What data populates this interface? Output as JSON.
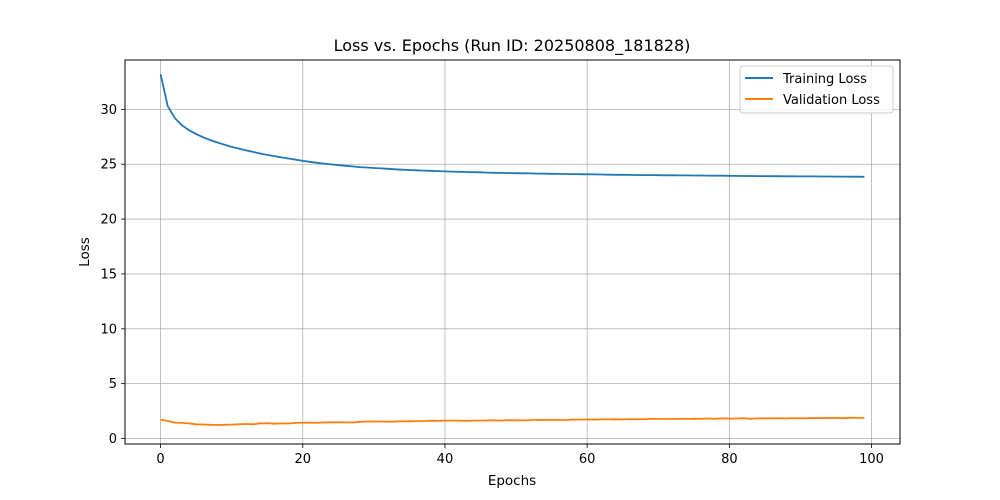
{
  "chart_data": {
    "type": "line",
    "title": "Loss vs. Epochs (Run ID: 20250808_181828)",
    "xlabel": "Epochs",
    "ylabel": "Loss",
    "xlim": [
      -5,
      104
    ],
    "ylim": [
      -0.5,
      34.5
    ],
    "xticks": [
      0,
      20,
      40,
      60,
      80,
      100
    ],
    "yticks": [
      0,
      5,
      10,
      15,
      20,
      25,
      30
    ],
    "grid": true,
    "legend_position": "top-right",
    "x": [
      0,
      1,
      2,
      3,
      4,
      5,
      6,
      7,
      8,
      9,
      10,
      11,
      12,
      13,
      14,
      15,
      16,
      17,
      18,
      19,
      20,
      21,
      22,
      23,
      24,
      25,
      26,
      27,
      28,
      29,
      30,
      31,
      32,
      33,
      34,
      35,
      36,
      37,
      38,
      39,
      40,
      41,
      42,
      43,
      44,
      45,
      46,
      47,
      48,
      49,
      50,
      51,
      52,
      53,
      54,
      55,
      56,
      57,
      58,
      59,
      60,
      61,
      62,
      63,
      64,
      65,
      66,
      67,
      68,
      69,
      70,
      71,
      72,
      73,
      74,
      75,
      76,
      77,
      78,
      79,
      80,
      81,
      82,
      83,
      84,
      85,
      86,
      87,
      88,
      89,
      90,
      91,
      92,
      93,
      94,
      95,
      96,
      97,
      98,
      99
    ],
    "series": [
      {
        "name": "Training Loss",
        "color": "#1f77b4",
        "values": [
          33.2,
          30.3,
          29.2,
          28.55,
          28.1,
          27.75,
          27.45,
          27.2,
          26.98,
          26.78,
          26.58,
          26.42,
          26.26,
          26.12,
          25.98,
          25.85,
          25.74,
          25.62,
          25.52,
          25.42,
          25.3,
          25.22,
          25.13,
          25.05,
          24.98,
          24.92,
          24.86,
          24.8,
          24.74,
          24.7,
          24.66,
          24.62,
          24.58,
          24.54,
          24.5,
          24.47,
          24.45,
          24.42,
          24.4,
          24.37,
          24.35,
          24.33,
          24.31,
          24.29,
          24.27,
          24.26,
          24.24,
          24.22,
          24.21,
          24.19,
          24.18,
          24.17,
          24.16,
          24.15,
          24.14,
          24.13,
          24.12,
          24.11,
          24.1,
          24.09,
          24.08,
          24.07,
          24.06,
          24.05,
          24.04,
          24.04,
          24.03,
          24.02,
          24.01,
          24.01,
          24.0,
          23.99,
          23.99,
          23.98,
          23.98,
          23.97,
          23.97,
          23.96,
          23.95,
          23.95,
          23.94,
          23.94,
          23.93,
          23.93,
          23.92,
          23.92,
          23.91,
          23.91,
          23.9,
          23.9,
          23.89,
          23.89,
          23.89,
          23.88,
          23.88,
          23.87,
          23.87,
          23.86,
          23.86,
          23.85
        ]
      },
      {
        "name": "Validation Loss",
        "color": "#ff7f0e",
        "values": [
          1.72,
          1.6,
          1.45,
          1.42,
          1.38,
          1.3,
          1.28,
          1.25,
          1.23,
          1.25,
          1.27,
          1.3,
          1.32,
          1.3,
          1.38,
          1.4,
          1.35,
          1.38,
          1.37,
          1.42,
          1.44,
          1.45,
          1.43,
          1.46,
          1.48,
          1.48,
          1.47,
          1.46,
          1.52,
          1.55,
          1.56,
          1.55,
          1.53,
          1.55,
          1.57,
          1.57,
          1.59,
          1.6,
          1.62,
          1.61,
          1.63,
          1.63,
          1.62,
          1.61,
          1.64,
          1.63,
          1.65,
          1.66,
          1.64,
          1.67,
          1.66,
          1.65,
          1.68,
          1.7,
          1.69,
          1.71,
          1.7,
          1.68,
          1.73,
          1.72,
          1.74,
          1.72,
          1.75,
          1.74,
          1.76,
          1.73,
          1.77,
          1.75,
          1.76,
          1.8,
          1.79,
          1.78,
          1.78,
          1.8,
          1.79,
          1.81,
          1.8,
          1.82,
          1.8,
          1.83,
          1.81,
          1.82,
          1.85,
          1.8,
          1.83,
          1.84,
          1.83,
          1.85,
          1.82,
          1.86,
          1.84,
          1.85,
          1.87,
          1.86,
          1.88,
          1.87,
          1.85,
          1.9,
          1.88,
          1.87
        ]
      }
    ]
  }
}
